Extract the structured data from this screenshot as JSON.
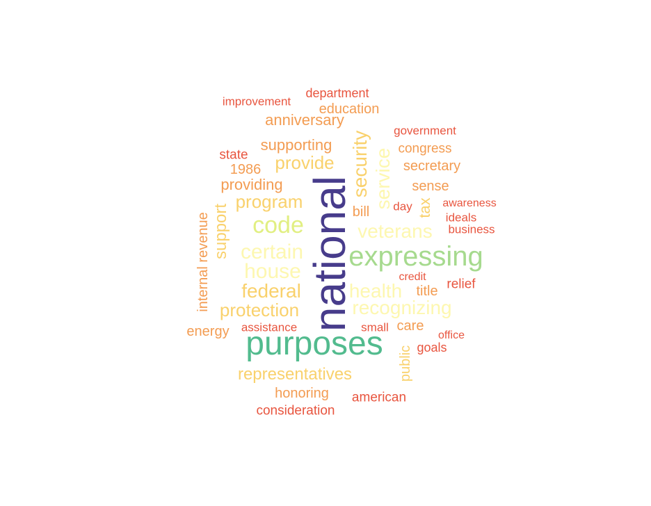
{
  "palette": {
    "red": "#e8553f",
    "orange": "#f39c52",
    "gold": "#f9d16c",
    "cream": "#fbf6a0",
    "pale_yellow": "#fdf7b0",
    "yellow_green": "#e1ef82",
    "light_green": "#a6da8e",
    "teal": "#52bb8e",
    "navy": "#473c8b"
  },
  "words": [
    {
      "text": "national"
    },
    {
      "text": "purposes"
    },
    {
      "text": "expressing"
    },
    {
      "text": "code"
    },
    {
      "text": "certain"
    },
    {
      "text": "house"
    },
    {
      "text": "federal"
    },
    {
      "text": "health"
    },
    {
      "text": "recognizing"
    },
    {
      "text": "veterans"
    },
    {
      "text": "security"
    },
    {
      "text": "service"
    },
    {
      "text": "protection"
    },
    {
      "text": "representatives"
    },
    {
      "text": "program"
    },
    {
      "text": "provide"
    },
    {
      "text": "supporting"
    },
    {
      "text": "support"
    },
    {
      "text": "internal revenue"
    },
    {
      "text": "anniversary"
    },
    {
      "text": "education"
    },
    {
      "text": "providing"
    },
    {
      "text": "1986"
    },
    {
      "text": "state"
    },
    {
      "text": "department"
    },
    {
      "text": "improvement"
    },
    {
      "text": "government"
    },
    {
      "text": "congress"
    },
    {
      "text": "secretary"
    },
    {
      "text": "sense"
    },
    {
      "text": "tax"
    },
    {
      "text": "bill"
    },
    {
      "text": "day"
    },
    {
      "text": "awareness"
    },
    {
      "text": "ideals"
    },
    {
      "text": "business"
    },
    {
      "text": "credit"
    },
    {
      "text": "title"
    },
    {
      "text": "relief"
    },
    {
      "text": "care"
    },
    {
      "text": "small"
    },
    {
      "text": "office"
    },
    {
      "text": "goals"
    },
    {
      "text": "public"
    },
    {
      "text": "energy"
    },
    {
      "text": "assistance"
    },
    {
      "text": "honoring"
    },
    {
      "text": "american"
    },
    {
      "text": "consideration"
    }
  ]
}
